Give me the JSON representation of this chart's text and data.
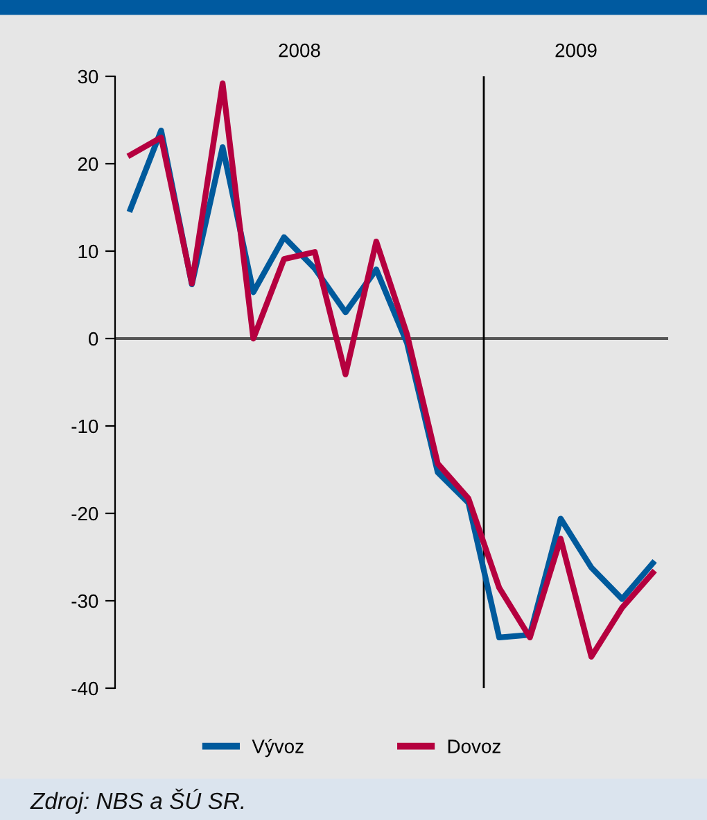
{
  "chart_data": {
    "type": "line",
    "categories": [
      null,
      null,
      null,
      null,
      null,
      null,
      null,
      null,
      null,
      null,
      null,
      null,
      null,
      null,
      null,
      null,
      null,
      null
    ],
    "series": [
      {
        "name": "Vývoz",
        "color": "#005a9c",
        "values": [
          14.8,
          23.8,
          6.2,
          21.9,
          5.3,
          11.6,
          8.0,
          3.0,
          7.9,
          -0.5,
          -15.3,
          -18.8,
          -34.2,
          -33.9,
          -20.6,
          -26.2,
          -29.8,
          -25.7
        ]
      },
      {
        "name": "Dovoz",
        "color": "#b5003f",
        "values": [
          21.0,
          23.0,
          6.3,
          29.2,
          0.0,
          9.1,
          9.9,
          -4.1,
          11.1,
          0.5,
          -14.3,
          -18.3,
          -28.5,
          -34.2,
          -22.9,
          -36.4,
          -30.8,
          -26.8
        ]
      }
    ],
    "ylim": [
      -40,
      30
    ],
    "yticks": [
      -40,
      -30,
      -20,
      -10,
      0,
      10,
      20,
      30
    ],
    "ref_lines": [
      {
        "axis": "y",
        "value": 0,
        "color": "#555555"
      }
    ],
    "grid": false,
    "legend": "bottom",
    "marker": "none",
    "line_style": "solid",
    "annotations": [
      "2008",
      "2009",
      "Zdroj: NBS a ŠÚ SR."
    ]
  }
}
